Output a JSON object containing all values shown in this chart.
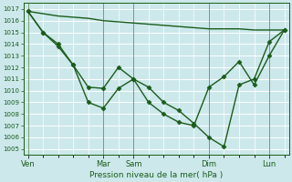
{
  "bg_color": "#cce8eb",
  "grid_color": "#ffffff",
  "line_color": "#1a5c1a",
  "marker": "D",
  "markersize": 2.5,
  "linewidth": 1.0,
  "xlabel": "Pression niveau de la mer( hPa )",
  "ylim": [
    1004.5,
    1017.5
  ],
  "yticks": [
    1005,
    1006,
    1007,
    1008,
    1009,
    1010,
    1011,
    1012,
    1013,
    1014,
    1015,
    1016,
    1017
  ],
  "xlim": [
    -0.3,
    17.3
  ],
  "x_tick_positions": [
    0,
    5,
    7,
    12,
    16
  ],
  "x_tick_labels": [
    "Ven",
    "Mar",
    "Sam",
    "Dim",
    "Lun"
  ],
  "vline_positions": [
    0,
    5,
    7,
    12,
    16
  ],
  "series1_x": [
    0,
    1,
    2,
    3,
    4,
    5,
    6,
    7,
    8,
    9,
    10,
    11,
    12,
    13,
    14,
    15,
    16,
    17
  ],
  "series1_y": [
    1016.8,
    1015.0,
    1013.8,
    1012.2,
    1009.0,
    1008.5,
    1010.2,
    1011.0,
    1010.3,
    1009.0,
    1008.3,
    1007.2,
    1006.0,
    1005.2,
    1010.5,
    1011.0,
    1014.2,
    1015.2
  ],
  "series2_x": [
    0,
    1,
    2,
    3,
    4,
    5,
    6,
    7,
    8,
    9,
    10,
    11,
    12,
    13,
    14,
    15,
    16,
    17
  ],
  "series2_y": [
    1016.8,
    1015.0,
    1014.0,
    1012.2,
    1010.3,
    1010.2,
    1012.0,
    1011.0,
    1009.0,
    1008.0,
    1007.3,
    1007.0,
    1010.3,
    1011.2,
    1012.5,
    1010.5,
    1013.0,
    1015.2
  ],
  "series3_x": [
    0,
    1,
    2,
    3,
    4,
    5,
    6,
    7,
    8,
    9,
    10,
    11,
    12,
    13,
    14,
    15,
    16,
    17
  ],
  "series3_y": [
    1016.8,
    1016.6,
    1016.4,
    1016.3,
    1016.2,
    1016.0,
    1015.9,
    1015.8,
    1015.7,
    1015.6,
    1015.5,
    1015.4,
    1015.3,
    1015.3,
    1015.3,
    1015.2,
    1015.2,
    1015.2
  ]
}
